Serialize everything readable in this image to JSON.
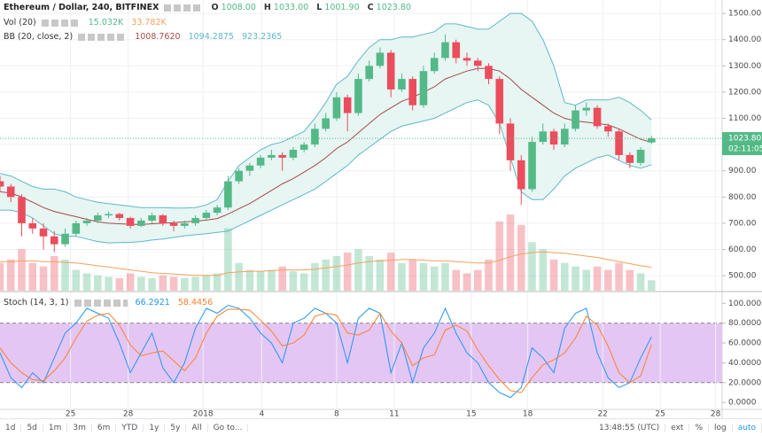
{
  "chart_data": [
    {
      "type": "candlestick",
      "title": "Ethereum / Dollar, 240, BITFINEX",
      "ohlc_readout": [
        {
          "label": "O",
          "value": "1008.00"
        },
        {
          "label": "H",
          "value": "1033.00"
        },
        {
          "label": "L",
          "value": "1001.90"
        },
        {
          "label": "C",
          "value": "1023.80"
        }
      ],
      "up_color": "#53b987",
      "down_color": "#eb4d5c",
      "ohlc": [
        [
          860,
          880,
          820,
          840
        ],
        [
          840,
          850,
          780,
          800
        ],
        [
          800,
          810,
          650,
          700
        ],
        [
          700,
          720,
          660,
          680
        ],
        [
          680,
          700,
          600,
          650
        ],
        [
          650,
          670,
          590,
          620
        ],
        [
          620,
          680,
          610,
          660
        ],
        [
          660,
          710,
          650,
          700
        ],
        [
          700,
          720,
          690,
          710
        ],
        [
          710,
          740,
          700,
          730
        ],
        [
          730,
          745,
          720,
          735
        ],
        [
          735,
          740,
          710,
          720
        ],
        [
          720,
          725,
          680,
          690
        ],
        [
          690,
          720,
          685,
          710
        ],
        [
          710,
          740,
          700,
          730
        ],
        [
          730,
          735,
          690,
          700
        ],
        [
          700,
          710,
          670,
          690
        ],
        [
          690,
          710,
          680,
          700
        ],
        [
          700,
          730,
          690,
          720
        ],
        [
          720,
          750,
          710,
          740
        ],
        [
          740,
          770,
          730,
          760
        ],
        [
          760,
          880,
          750,
          860
        ],
        [
          860,
          910,
          850,
          900
        ],
        [
          900,
          930,
          880,
          920
        ],
        [
          920,
          960,
          910,
          950
        ],
        [
          950,
          980,
          940,
          960
        ],
        [
          960,
          970,
          900,
          950
        ],
        [
          950,
          990,
          940,
          980
        ],
        [
          980,
          1010,
          970,
          1000
        ],
        [
          1000,
          1080,
          990,
          1060
        ],
        [
          1060,
          1120,
          1050,
          1100
        ],
        [
          1100,
          1200,
          1090,
          1180
        ],
        [
          1180,
          1190,
          1050,
          1120
        ],
        [
          1120,
          1270,
          1110,
          1250
        ],
        [
          1250,
          1320,
          1240,
          1300
        ],
        [
          1300,
          1370,
          1290,
          1350
        ],
        [
          1350,
          1360,
          1180,
          1210
        ],
        [
          1210,
          1270,
          1200,
          1250
        ],
        [
          1250,
          1260,
          1130,
          1150
        ],
        [
          1150,
          1300,
          1140,
          1280
        ],
        [
          1280,
          1350,
          1270,
          1330
        ],
        [
          1330,
          1420,
          1320,
          1390
        ],
        [
          1390,
          1400,
          1310,
          1330
        ],
        [
          1330,
          1350,
          1300,
          1320
        ],
        [
          1320,
          1330,
          1280,
          1300
        ],
        [
          1300,
          1310,
          1230,
          1250
        ],
        [
          1250,
          1260,
          1040,
          1080
        ],
        [
          1080,
          1100,
          900,
          940
        ],
        [
          940,
          960,
          770,
          830
        ],
        [
          830,
          1030,
          820,
          1010
        ],
        [
          1010,
          1080,
          1000,
          1050
        ],
        [
          1050,
          1060,
          980,
          1000
        ],
        [
          1000,
          1080,
          990,
          1060
        ],
        [
          1060,
          1150,
          1050,
          1130
        ],
        [
          1130,
          1160,
          1110,
          1140
        ],
        [
          1140,
          1150,
          1060,
          1070
        ],
        [
          1070,
          1080,
          1030,
          1050
        ],
        [
          1050,
          1060,
          940,
          960
        ],
        [
          960,
          970,
          910,
          930
        ],
        [
          930,
          990,
          920,
          980
        ],
        [
          1008,
          1033,
          1001.9,
          1023.8
        ]
      ],
      "xlim": [
        0,
        66.5
      ],
      "xticks": [
        {
          "value": 6.5,
          "label": "25"
        },
        {
          "value": 11.8,
          "label": "28"
        },
        {
          "value": 18.7,
          "label": "2018"
        },
        {
          "value": 24.1,
          "label": "4"
        },
        {
          "value": 31,
          "label": "8"
        },
        {
          "value": 36.3,
          "label": "11"
        },
        {
          "value": 43.4,
          "label": "15"
        },
        {
          "value": 48.6,
          "label": "18"
        },
        {
          "value": 55.5,
          "label": "22"
        },
        {
          "value": 60.8,
          "label": "25"
        },
        {
          "value": 65.9,
          "label": "28"
        }
      ],
      "ylim": [
        443,
        1551
      ],
      "yticks": [
        {
          "value": 500,
          "label": "500.00"
        },
        {
          "value": 600,
          "label": "600.00"
        },
        {
          "value": 700,
          "label": "700.00"
        },
        {
          "value": 800,
          "label": "800.00"
        },
        {
          "value": 900,
          "label": "900.00"
        },
        {
          "value": 1000,
          "label": "1000.00"
        },
        {
          "value": 1100,
          "label": "1100.00"
        },
        {
          "value": 1200,
          "label": "1200.00"
        },
        {
          "value": 1300,
          "label": "1300.00"
        },
        {
          "value": 1400,
          "label": "1400.00"
        },
        {
          "value": 1500,
          "label": "1500.00"
        }
      ],
      "grid": true,
      "last_price": {
        "value": 1023.8,
        "label": "1023.80"
      },
      "countdown": "02:11:05",
      "overlays": [
        {
          "name": "BB (20, close, 2)",
          "readout": [
            "1008.7620",
            "1094.2875",
            "923.2365"
          ],
          "fill": "#e7f5f3",
          "series": [
            {
              "color": "#5db8c9",
              "values": [
                890,
                880,
                860,
                840,
                830,
                830,
                820,
                800,
                790,
                780,
                775,
                770,
                765,
                760,
                760,
                760,
                758,
                758,
                760,
                770,
                790,
                860,
                920,
                950,
                980,
                1000,
                1010,
                1030,
                1050,
                1100,
                1160,
                1230,
                1260,
                1320,
                1370,
                1400,
                1400,
                1410,
                1410,
                1420,
                1430,
                1460,
                1460,
                1450,
                1440,
                1440,
                1470,
                1500,
                1500,
                1470,
                1400,
                1300,
                1160,
                1150,
                1170,
                1170,
                1170,
                1180,
                1160,
                1130,
                1094.2875
              ]
            },
            {
              "color": "#a64a45",
              "values": [
                820,
                815,
                800,
                780,
                760,
                745,
                735,
                725,
                715,
                705,
                700,
                698,
                696,
                695,
                698,
                700,
                702,
                705,
                708,
                712,
                718,
                735,
                755,
                775,
                800,
                825,
                850,
                870,
                895,
                920,
                950,
                985,
                1010,
                1045,
                1080,
                1115,
                1140,
                1165,
                1180,
                1200,
                1220,
                1250,
                1265,
                1280,
                1290,
                1290,
                1280,
                1250,
                1210,
                1180,
                1150,
                1120,
                1100,
                1090,
                1085,
                1080,
                1075,
                1060,
                1040,
                1020,
                1008.762
              ]
            },
            {
              "color": "#5db8c9",
              "values": [
                750,
                750,
                740,
                720,
                690,
                660,
                650,
                650,
                640,
                630,
                625,
                626,
                627,
                630,
                636,
                640,
                646,
                652,
                656,
                660,
                665,
                670,
                690,
                710,
                730,
                750,
                770,
                790,
                810,
                830,
                860,
                890,
                920,
                960,
                990,
                1020,
                1050,
                1070,
                1080,
                1090,
                1100,
                1120,
                1140,
                1160,
                1170,
                1150,
                1080,
                950,
                820,
                790,
                790,
                830,
                880,
                910,
                930,
                950,
                960,
                940,
                920,
                910,
                923.2365
              ]
            }
          ]
        }
      ],
      "volume": {
        "name": "Vol (20)",
        "readout": [
          "15.032K",
          "33.782K"
        ],
        "ylim": [
          0,
          420
        ],
        "ma_color": "#f5a05c",
        "values": [
          40,
          45,
          60,
          40,
          35,
          50,
          45,
          30,
          25,
          22,
          20,
          18,
          25,
          20,
          18,
          22,
          20,
          18,
          20,
          22,
          25,
          90,
          40,
          30,
          28,
          30,
          35,
          28,
          25,
          40,
          45,
          50,
          55,
          60,
          50,
          45,
          55,
          40,
          45,
          40,
          35,
          40,
          30,
          25,
          30,
          45,
          100,
          110,
          95,
          70,
          60,
          45,
          40,
          35,
          30,
          35,
          30,
          40,
          30,
          25,
          15.032
        ],
        "ma": [
          42,
          42,
          43,
          43,
          42,
          42,
          41,
          40,
          38,
          36,
          34,
          32,
          30,
          28,
          26,
          25,
          24,
          23,
          22,
          22,
          22,
          26,
          27,
          28,
          28,
          29,
          30,
          30,
          30,
          31,
          33,
          35,
          37,
          40,
          42,
          43,
          44,
          45,
          45,
          44,
          43,
          43,
          42,
          41,
          40,
          40,
          44,
          49,
          53,
          55,
          56,
          55,
          54,
          52,
          50,
          48,
          45,
          42,
          39,
          36,
          33.782
        ]
      }
    },
    {
      "type": "line",
      "name": "Stoch (14, 3, 1)",
      "series": [
        {
          "color": "#2196f3",
          "value_label": "66.2921",
          "values": [
            50,
            25,
            15,
            30,
            20,
            45,
            70,
            80,
            95,
            90,
            85,
            60,
            30,
            50,
            70,
            35,
            20,
            40,
            75,
            95,
            90,
            98,
            95,
            85,
            70,
            60,
            40,
            80,
            85,
            95,
            90,
            80,
            40,
            85,
            95,
            90,
            30,
            60,
            20,
            55,
            70,
            95,
            70,
            50,
            40,
            20,
            10,
            5,
            15,
            55,
            45,
            30,
            75,
            90,
            95,
            50,
            25,
            15,
            20,
            45,
            66.2921
          ]
        },
        {
          "color": "#ff7f2a",
          "value_label": "58.4456",
          "values": [
            55,
            40,
            30,
            23,
            22,
            32,
            45,
            65,
            82,
            88,
            90,
            78,
            58,
            47,
            50,
            52,
            42,
            32,
            45,
            70,
            87,
            94,
            94,
            93,
            83,
            72,
            57,
            60,
            68,
            87,
            90,
            88,
            70,
            68,
            73,
            90,
            72,
            60,
            37,
            45,
            48,
            73,
            78,
            72,
            53,
            37,
            23,
            12,
            10,
            25,
            38,
            43,
            50,
            65,
            87,
            78,
            57,
            30,
            20,
            27,
            58.4456
          ]
        }
      ],
      "ylim": [
        -7,
        111
      ],
      "yticks": [
        {
          "value": 0,
          "label": "0.0000"
        },
        {
          "value": 20,
          "label": "20.0000"
        },
        {
          "value": 40,
          "label": "40.0000"
        },
        {
          "value": 60,
          "label": "60.0000"
        },
        {
          "value": 80,
          "label": "80.0000"
        },
        {
          "value": 100,
          "label": "100.0000"
        }
      ],
      "band": [
        20,
        80
      ],
      "band_color": "#e4c6f5"
    }
  ],
  "toolbar": {
    "ranges": [
      "1d",
      "5d",
      "1m",
      "3m",
      "6m",
      "YTD",
      "1y",
      "5y",
      "All"
    ],
    "goto": "Go to...",
    "clock": "13:48:55 (UTC)",
    "options": [
      "ext",
      "%",
      "log",
      "auto"
    ]
  }
}
